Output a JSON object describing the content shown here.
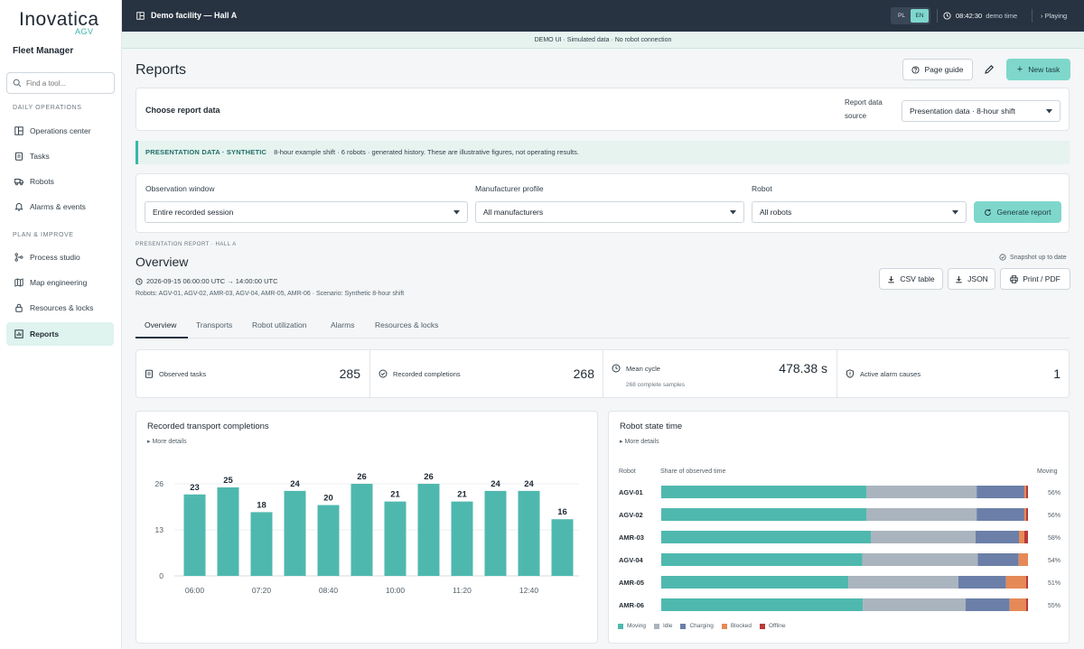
{
  "brand": {
    "name": "Inovatica",
    "sub": "AGV",
    "app": "Fleet Manager"
  },
  "search": {
    "placeholder": "Find a tool..."
  },
  "nav": {
    "section1": "DAILY OPERATIONS",
    "section2": "PLAN & IMPROVE",
    "items": [
      {
        "label": "Operations center",
        "icon": "layout-icon"
      },
      {
        "label": "Tasks",
        "icon": "clipboard-icon"
      },
      {
        "label": "Robots",
        "icon": "truck-icon"
      },
      {
        "label": "Alarms & events",
        "icon": "bell-icon"
      },
      {
        "label": "Process studio",
        "icon": "flow-icon"
      },
      {
        "label": "Map engineering",
        "icon": "map-icon"
      },
      {
        "label": "Resources & locks",
        "icon": "lock-icon"
      },
      {
        "label": "Reports",
        "icon": "chart-icon",
        "active": true
      }
    ]
  },
  "topbar": {
    "facility": "Demo facility — Hall A",
    "lang": [
      "PL",
      "EN"
    ],
    "lang_selected": "EN",
    "time": "08:42:30",
    "time_label": "demo time",
    "playing": "Playing"
  },
  "banner": "DEMO UI · Simulated data · No robot connection",
  "page": {
    "title": "Reports",
    "page_guide": "Page guide",
    "new_task": "New task"
  },
  "report_data": {
    "title": "Choose report data",
    "source_label": "Report data source",
    "source_value": "Presentation data · 8-hour shift"
  },
  "synthetic": {
    "tag": "PRESENTATION DATA · SYNTHETIC",
    "text": "8-hour example shift · 6 robots · generated history. These are illustrative figures, not operating results."
  },
  "filters": {
    "window_label": "Observation window",
    "window_value": "Entire recorded session",
    "manufacturer_label": "Manufacturer profile",
    "manufacturer_value": "All manufacturers",
    "robot_label": "Robot",
    "robot_value": "All robots",
    "generate": "Generate report"
  },
  "report": {
    "caption": "PRESENTATION REPORT · HALL A",
    "title": "Overview",
    "range": "2026-09-15 06:00:00 UTC → 14:00:00 UTC",
    "robots": "Robots: AGV-01, AGV-02, AMR-03, AGV-04, AMR-05, AMR-06 · Scenario: Synthetic 8-hour shift",
    "snapshot": "Snapshot up to date",
    "csv": "CSV table",
    "json": "JSON",
    "print": "Print / PDF"
  },
  "tabs": [
    "Overview",
    "Transports",
    "Robot utilization",
    "Alarms",
    "Resources & locks"
  ],
  "kpis": [
    {
      "label": "Observed tasks",
      "value": "285",
      "sub": ""
    },
    {
      "label": "Recorded completions",
      "value": "268",
      "sub": ""
    },
    {
      "label": "Mean cycle",
      "value": "478.38 s",
      "sub": "268 complete samples"
    },
    {
      "label": "Active alarm causes",
      "value": "1",
      "sub": ""
    }
  ],
  "transport_card": {
    "title": "Recorded transport completions",
    "more": "More details"
  },
  "state_card": {
    "title": "Robot state time",
    "more": "More details",
    "col_robot": "Robot",
    "col_share": "Share of observed time",
    "col_moving": "Moving"
  },
  "colors": {
    "accent": "#4fb8ae",
    "moving": "#4fb8ae",
    "idle": "#aab4be",
    "charging": "#6b7fa8",
    "blocked": "#e58a57",
    "offline": "#b83a3a"
  },
  "chart_data": [
    {
      "type": "bar",
      "title": "Recorded transport completions",
      "categories": [
        "06:00",
        "06:40",
        "07:20",
        "08:00",
        "08:40",
        "09:20",
        "10:00",
        "10:40",
        "11:20",
        "12:00",
        "12:40",
        "13:20"
      ],
      "values": [
        23,
        25,
        18,
        24,
        20,
        26,
        21,
        26,
        21,
        24,
        24,
        16
      ],
      "x_tick_labels": [
        "06:00",
        "07:20",
        "08:40",
        "10:00",
        "11:20",
        "12:40"
      ],
      "y_ticks": [
        0,
        13,
        26
      ],
      "ylim": [
        0,
        26
      ],
      "grid": true
    },
    {
      "type": "bar",
      "orientation": "horizontal-stacked",
      "title": "Robot state time",
      "categories": [
        "AGV-01",
        "AGV-02",
        "AMR-03",
        "AGV-04",
        "AMR-05",
        "AMR-06"
      ],
      "series": [
        {
          "name": "Moving",
          "values": [
            56,
            56,
            58,
            54,
            51,
            55
          ]
        },
        {
          "name": "Idle",
          "values": [
            30,
            30,
            29,
            31,
            30,
            28
          ]
        },
        {
          "name": "Charging",
          "values": [
            13,
            13,
            12,
            11,
            13,
            12
          ]
        },
        {
          "name": "Blocked",
          "values": [
            0.5,
            0.5,
            1.5,
            2.5,
            5.5,
            4.5
          ]
        },
        {
          "name": "Offline",
          "values": [
            0.5,
            0.5,
            1,
            0,
            0.5,
            0.5
          ]
        }
      ],
      "moving_labels": [
        "56%",
        "56%",
        "58%",
        "54%",
        "51%",
        "55%"
      ],
      "legend": "bottom-left"
    }
  ]
}
